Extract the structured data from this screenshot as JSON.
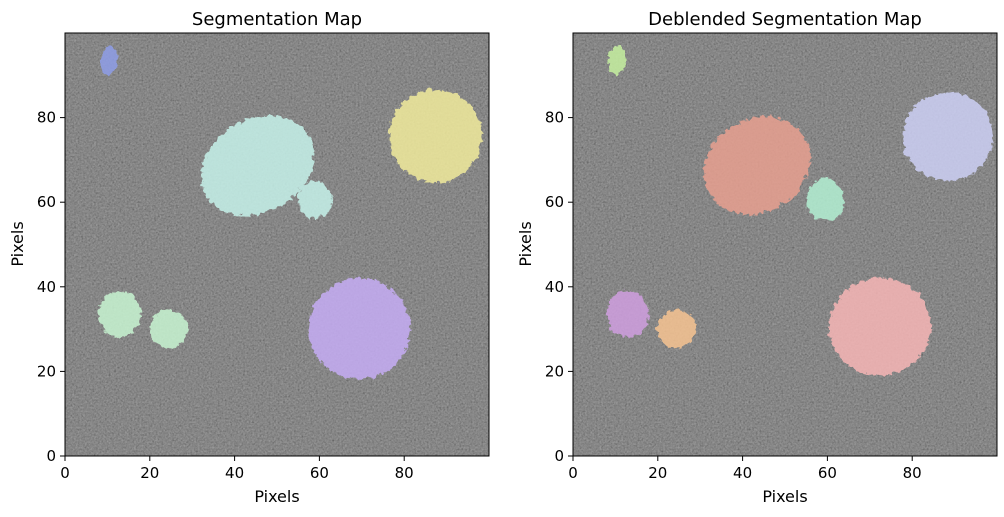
{
  "chart_data": [
    {
      "type": "heatmap",
      "title": "Segmentation Map",
      "xlabel": "Pixels",
      "ylabel": "Pixels",
      "xlim": [
        0,
        100
      ],
      "ylim": [
        0,
        100
      ],
      "xticks": [
        0,
        20,
        40,
        60,
        80
      ],
      "yticks": [
        0,
        20,
        40,
        60,
        80
      ],
      "background": "noisy grayscale image",
      "segments": [
        {
          "label": 1,
          "color": "#8f9ee8",
          "cx": 10,
          "cy": 94,
          "rx": 2,
          "ry": 3.5,
          "rot": 0
        },
        {
          "label": 2,
          "color": "#f1eb9c",
          "cx": 87,
          "cy": 76,
          "rx": 11,
          "ry": 11,
          "rot": 0
        },
        {
          "label": 3,
          "color": "#c6f2ea",
          "cx": 45,
          "cy": 69,
          "rx": 14,
          "ry": 11,
          "rot": -30
        },
        {
          "label": 3,
          "color": "#c6f2ea",
          "cx": 58.5,
          "cy": 61,
          "rx": 4,
          "ry": 4.5,
          "rot": 0
        },
        {
          "label": 4,
          "color": "#c8f5d2",
          "cx": 12.5,
          "cy": 34,
          "rx": 5,
          "ry": 5.5,
          "rot": 0
        },
        {
          "label": 4,
          "color": "#c8f5d2",
          "cx": 24,
          "cy": 30.5,
          "rx": 4.5,
          "ry": 4.5,
          "rot": 0
        },
        {
          "label": 5,
          "color": "#c6adf5",
          "cx": 69,
          "cy": 30.5,
          "rx": 12,
          "ry": 12,
          "rot": -15
        }
      ]
    },
    {
      "type": "heatmap",
      "title": "Deblended Segmentation Map",
      "xlabel": "Pixels",
      "ylabel": "Pixels",
      "xlim": [
        0,
        100
      ],
      "ylim": [
        0,
        100
      ],
      "xticks": [
        0,
        20,
        40,
        60,
        80
      ],
      "yticks": [
        0,
        20,
        40,
        60,
        80
      ],
      "background": "noisy grayscale image",
      "segments": [
        {
          "label": 1,
          "color": "#c6f0a0",
          "cx": 10,
          "cy": 94,
          "rx": 2,
          "ry": 3.5,
          "rot": 0
        },
        {
          "label": 2,
          "color": "#cdd0f5",
          "cx": 88,
          "cy": 76,
          "rx": 10.5,
          "ry": 10.5,
          "rot": 0
        },
        {
          "label": 3,
          "color": "#e8a090",
          "cx": 43,
          "cy": 69,
          "rx": 13,
          "ry": 11,
          "rot": -30
        },
        {
          "label": 4,
          "color": "#b3f0d3",
          "cx": 59,
          "cy": 61,
          "rx": 4.5,
          "ry": 5,
          "rot": 0
        },
        {
          "label": 5,
          "color": "#d09fe0",
          "cx": 12.5,
          "cy": 34,
          "rx": 5,
          "ry": 5.5,
          "rot": 0
        },
        {
          "label": 6,
          "color": "#f7c492",
          "cx": 24,
          "cy": 30.5,
          "rx": 4.5,
          "ry": 4.5,
          "rot": 0
        },
        {
          "label": 7,
          "color": "#f7b6b6",
          "cx": 72,
          "cy": 31,
          "rx": 12,
          "ry": 11.5,
          "rot": -15
        }
      ]
    }
  ]
}
